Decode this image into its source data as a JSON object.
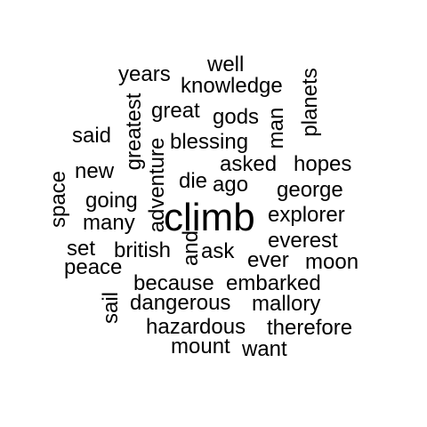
{
  "words": [
    {
      "text": "climb"
    },
    {
      "text": "well"
    },
    {
      "text": "years"
    },
    {
      "text": "knowledge"
    },
    {
      "text": "great"
    },
    {
      "text": "gods"
    },
    {
      "text": "said"
    },
    {
      "text": "blessing"
    },
    {
      "text": "asked"
    },
    {
      "text": "hopes"
    },
    {
      "text": "new"
    },
    {
      "text": "die"
    },
    {
      "text": "ago"
    },
    {
      "text": "george"
    },
    {
      "text": "going"
    },
    {
      "text": "explorer"
    },
    {
      "text": "many"
    },
    {
      "text": "everest"
    },
    {
      "text": "set"
    },
    {
      "text": "british"
    },
    {
      "text": "ask"
    },
    {
      "text": "ever"
    },
    {
      "text": "moon"
    },
    {
      "text": "peace"
    },
    {
      "text": "because"
    },
    {
      "text": "embarked"
    },
    {
      "text": "dangerous"
    },
    {
      "text": "mallory"
    },
    {
      "text": "hazardous"
    },
    {
      "text": "therefore"
    },
    {
      "text": "mount"
    },
    {
      "text": "want"
    },
    {
      "text": "greatest"
    },
    {
      "text": "adventure"
    },
    {
      "text": "man"
    },
    {
      "text": "planets"
    },
    {
      "text": "space"
    },
    {
      "text": "and"
    },
    {
      "text": "sail"
    }
  ]
}
